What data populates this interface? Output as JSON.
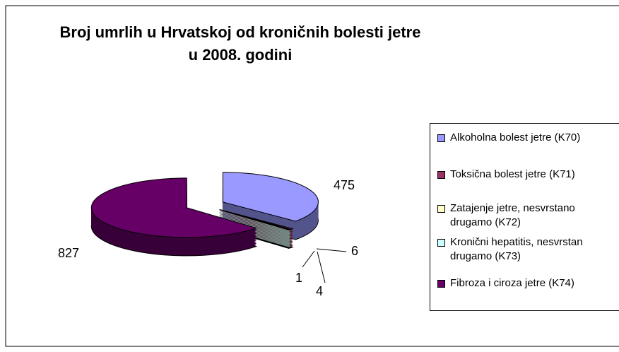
{
  "chart_data": {
    "type": "pie3d",
    "title": "Broj umrlih u Hrvatskoj od kroničnih bolesti jetre u 2008. godini",
    "categories": [
      "Alkoholna bolest jetre (K70)",
      "Toksična bolest jetre (K71)",
      "Zatajenje jetre, nesvrstano drugamo (K72)",
      "Kronični hepatitis, nesvrstan drugamo (K73)",
      "Fibroza i ciroza jetre (K74)"
    ],
    "values": [
      475,
      6,
      1,
      4,
      827
    ],
    "colors": [
      "#9999ff",
      "#993366",
      "#ffffcc",
      "#ccffff",
      "#660066"
    ],
    "legend": "right"
  }
}
